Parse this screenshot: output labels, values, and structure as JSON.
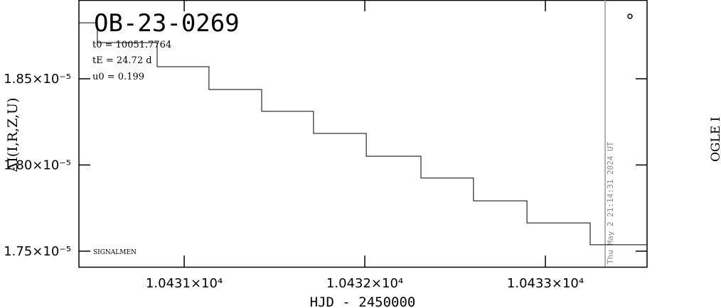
{
  "chart_data": {
    "type": "line",
    "title": "OB-23-0269",
    "annotations": [
      "t0 = 10051.7764",
      "tE = 24.72 d",
      "u0 = 0.199"
    ],
    "footer": "SIGNALMEN",
    "timestamp": "Thu May  2 21:14:31 2024 UT",
    "right_label": "OGLE I",
    "x_label": "HJD - 2450000",
    "y_label": "ΔI(I,R,Z,U)",
    "now_x": 10433.331,
    "series": [
      {
        "color": "#000000",
        "x": [
          10430.417,
          10430.519,
          10430.519,
          10430.85,
          10430.85,
          10431.137,
          10431.137,
          10431.429,
          10431.429,
          10431.716,
          10431.716,
          10432.008,
          10432.008,
          10432.311,
          10432.311,
          10432.602,
          10432.602,
          10432.898,
          10432.898,
          10433.248,
          10433.248,
          10433.563
        ],
        "values": [
          1.8825e-05,
          1.8825e-05,
          1.871e-05,
          1.871e-05,
          1.857e-05,
          1.857e-05,
          1.8438e-05,
          1.8438e-05,
          1.8311e-05,
          1.8311e-05,
          1.8183e-05,
          1.8183e-05,
          1.8051e-05,
          1.8051e-05,
          1.7924e-05,
          1.7924e-05,
          1.7792e-05,
          1.7792e-05,
          1.7664e-05,
          1.7664e-05,
          1.7537e-05,
          1.7537e-05
        ]
      }
    ],
    "xlim": [
      10430.417,
      10433.563
    ],
    "ylim": [
      1.7409e-05,
      1.8957e-05
    ],
    "xticks": [
      {
        "value": 10431,
        "label": "1.0431×10⁴"
      },
      {
        "value": 10432,
        "label": "1.0432×10⁴"
      },
      {
        "value": 10433,
        "label": "1.0433×10⁴"
      }
    ],
    "yticks": [
      {
        "value": 1.75e-05,
        "label": "1.75×10⁻⁵"
      },
      {
        "value": 1.8e-05,
        "label": "1.80×10⁻⁵"
      },
      {
        "value": 1.85e-05,
        "label": "1.85×10⁻⁵"
      }
    ]
  }
}
